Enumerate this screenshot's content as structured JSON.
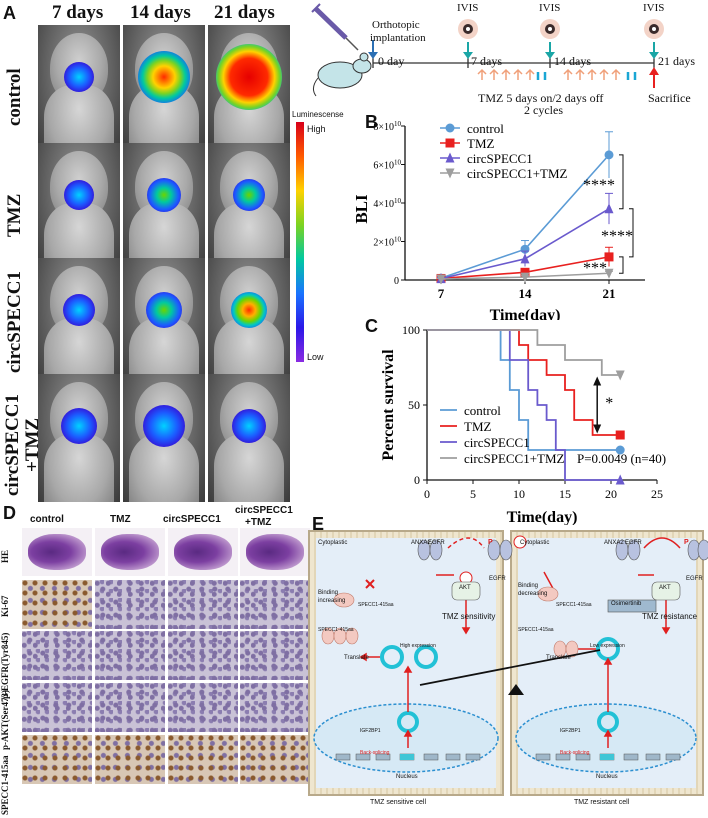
{
  "panels": {
    "a": "A",
    "b": "B",
    "c": "C",
    "d": "D",
    "e": "E"
  },
  "panel_a": {
    "days": [
      "7 days",
      "14 days",
      "21 days"
    ],
    "groups": [
      "control",
      "TMZ",
      "circSPECC1",
      "circSPECC1",
      "+TMZ"
    ],
    "legend_title": "Luminescense",
    "legend_high": "High",
    "legend_low": "Low"
  },
  "timeline": {
    "implant_line1": "Orthotopic",
    "implant_line2": "implantation",
    "ivis": [
      "IVIS",
      "IVIS",
      "IVIS"
    ],
    "ticks": [
      "0 day",
      "7 days",
      "14 days",
      "21 days"
    ],
    "tmz_line1": "TMZ 5 days on/2 days off",
    "tmz_line2": "2 cycles",
    "sacrifice": "Sacrifice"
  },
  "chart_data": [
    {
      "type": "line",
      "panel": "B",
      "x": [
        7,
        14,
        21
      ],
      "xlabel": "Time(day)",
      "ylabel": "BLI",
      "yunit_exp": "10",
      "ylim": [
        0,
        80000000000
      ],
      "yticks": [
        "0",
        "2×10",
        "4×10",
        "6×10",
        "8×10"
      ],
      "series": [
        {
          "name": "control",
          "color": "#5b9bd5",
          "marker": "circle",
          "values": [
            1000000000,
            16000000000,
            65000000000
          ],
          "errors": [
            1500000000,
            4500000000,
            12000000000
          ]
        },
        {
          "name": "TMZ",
          "color": "#e8201f",
          "marker": "square",
          "values": [
            800000000,
            4000000000,
            12000000000
          ],
          "errors": [
            500000000,
            1000000000,
            5000000000
          ]
        },
        {
          "name": "circSPECC1",
          "color": "#6a5acd",
          "marker": "triangle",
          "values": [
            700000000,
            11000000000,
            37000000000
          ],
          "errors": [
            600000000,
            4000000000,
            8000000000
          ]
        },
        {
          "name": "circSPECC1+TMZ",
          "color": "#9e9e9e",
          "marker": "triangle-down",
          "values": [
            500000000,
            1500000000,
            3500000000
          ],
          "errors": [
            300000000,
            800000000,
            1000000000
          ]
        }
      ],
      "annotations": [
        "****",
        "****",
        "***"
      ]
    },
    {
      "type": "line",
      "panel": "C",
      "xlabel": "Time(day)",
      "ylabel": "Percent survival",
      "xlim": [
        0,
        25
      ],
      "ylim": [
        0,
        100
      ],
      "xticks": [
        "0",
        "5",
        "10",
        "15",
        "20",
        "25"
      ],
      "yticks": [
        "0",
        "50",
        "100"
      ],
      "series": [
        {
          "name": "control",
          "color": "#5b9bd5",
          "steps": [
            [
              0,
              100
            ],
            [
              8,
              100
            ],
            [
              8,
              80
            ],
            [
              9,
              80
            ],
            [
              9,
              60
            ],
            [
              10,
              60
            ],
            [
              10,
              40
            ],
            [
              11,
              40
            ],
            [
              11,
              20
            ],
            [
              21,
              20
            ]
          ]
        },
        {
          "name": "TMZ",
          "color": "#e8201f",
          "steps": [
            [
              0,
              100
            ],
            [
              10,
              100
            ],
            [
              10,
              90
            ],
            [
              11,
              90
            ],
            [
              11,
              80
            ],
            [
              13,
              80
            ],
            [
              13,
              70
            ],
            [
              15,
              70
            ],
            [
              15,
              60
            ],
            [
              16,
              60
            ],
            [
              16,
              40
            ],
            [
              18,
              40
            ],
            [
              18,
              30
            ],
            [
              21,
              30
            ]
          ]
        },
        {
          "name": "circSPECC1",
          "color": "#6a5acd",
          "steps": [
            [
              0,
              100
            ],
            [
              9,
              100
            ],
            [
              9,
              80
            ],
            [
              11,
              80
            ],
            [
              11,
              60
            ],
            [
              12,
              60
            ],
            [
              12,
              50
            ],
            [
              13,
              50
            ],
            [
              13,
              40
            ],
            [
              14,
              40
            ],
            [
              14,
              20
            ],
            [
              15,
              20
            ],
            [
              15,
              0
            ],
            [
              21,
              0
            ]
          ]
        },
        {
          "name": "circSPECC1+TMZ",
          "color": "#9e9e9e",
          "steps": [
            [
              0,
              100
            ],
            [
              12,
              100
            ],
            [
              12,
              90
            ],
            [
              15,
              90
            ],
            [
              15,
              80
            ],
            [
              19,
              80
            ],
            [
              19,
              70
            ],
            [
              21,
              70
            ]
          ]
        }
      ],
      "stats": "P=0.0049 (n=40)",
      "annotation": "*"
    }
  ],
  "panel_d": {
    "columns": [
      "control",
      "TMZ",
      "circSPECC1",
      "circSPECC1",
      "+TMZ"
    ],
    "rows": [
      "HE",
      "Ki-67",
      "p-EGFR(Tyr845)",
      "p-AKT(Ser473)",
      "SPECC1-415aa"
    ]
  },
  "panel_e": {
    "left": {
      "cytoplastic": "Cytoplastic",
      "annxa2": "ANXA2",
      "egfr": "EGFR",
      "egfr_p": "EGFR",
      "p": "P",
      "akt": "AKT",
      "binding1": "Binding",
      "binding2": "increasing",
      "peptide": "SPECC1-415aa",
      "tmz_result": "TMZ sensitivity",
      "expression": "High expression",
      "translate": "Translate",
      "igf": "IGF2BP1",
      "splicing": "Back-splicing",
      "nucleus": "Nucleus",
      "cell": "TMZ sensitive cell"
    },
    "right": {
      "cytoplastic": "Cytoplastic",
      "annxa2": "ANXA2",
      "egfr": "EGFR",
      "egfr_p": "EGFR",
      "p": "P",
      "akt": "AKT",
      "binding1": "Binding",
      "binding2": "decreasing",
      "peptide": "SPECC1-415aa",
      "drug": "Osimertinib",
      "tmz_result": "TMZ resistance",
      "expression": "Low expression",
      "translate": "Translate",
      "igf": "IGF2BP1",
      "splicing": "Back-splicing",
      "nucleus": "Nucleus",
      "cell": "TMZ resistant cell"
    }
  }
}
